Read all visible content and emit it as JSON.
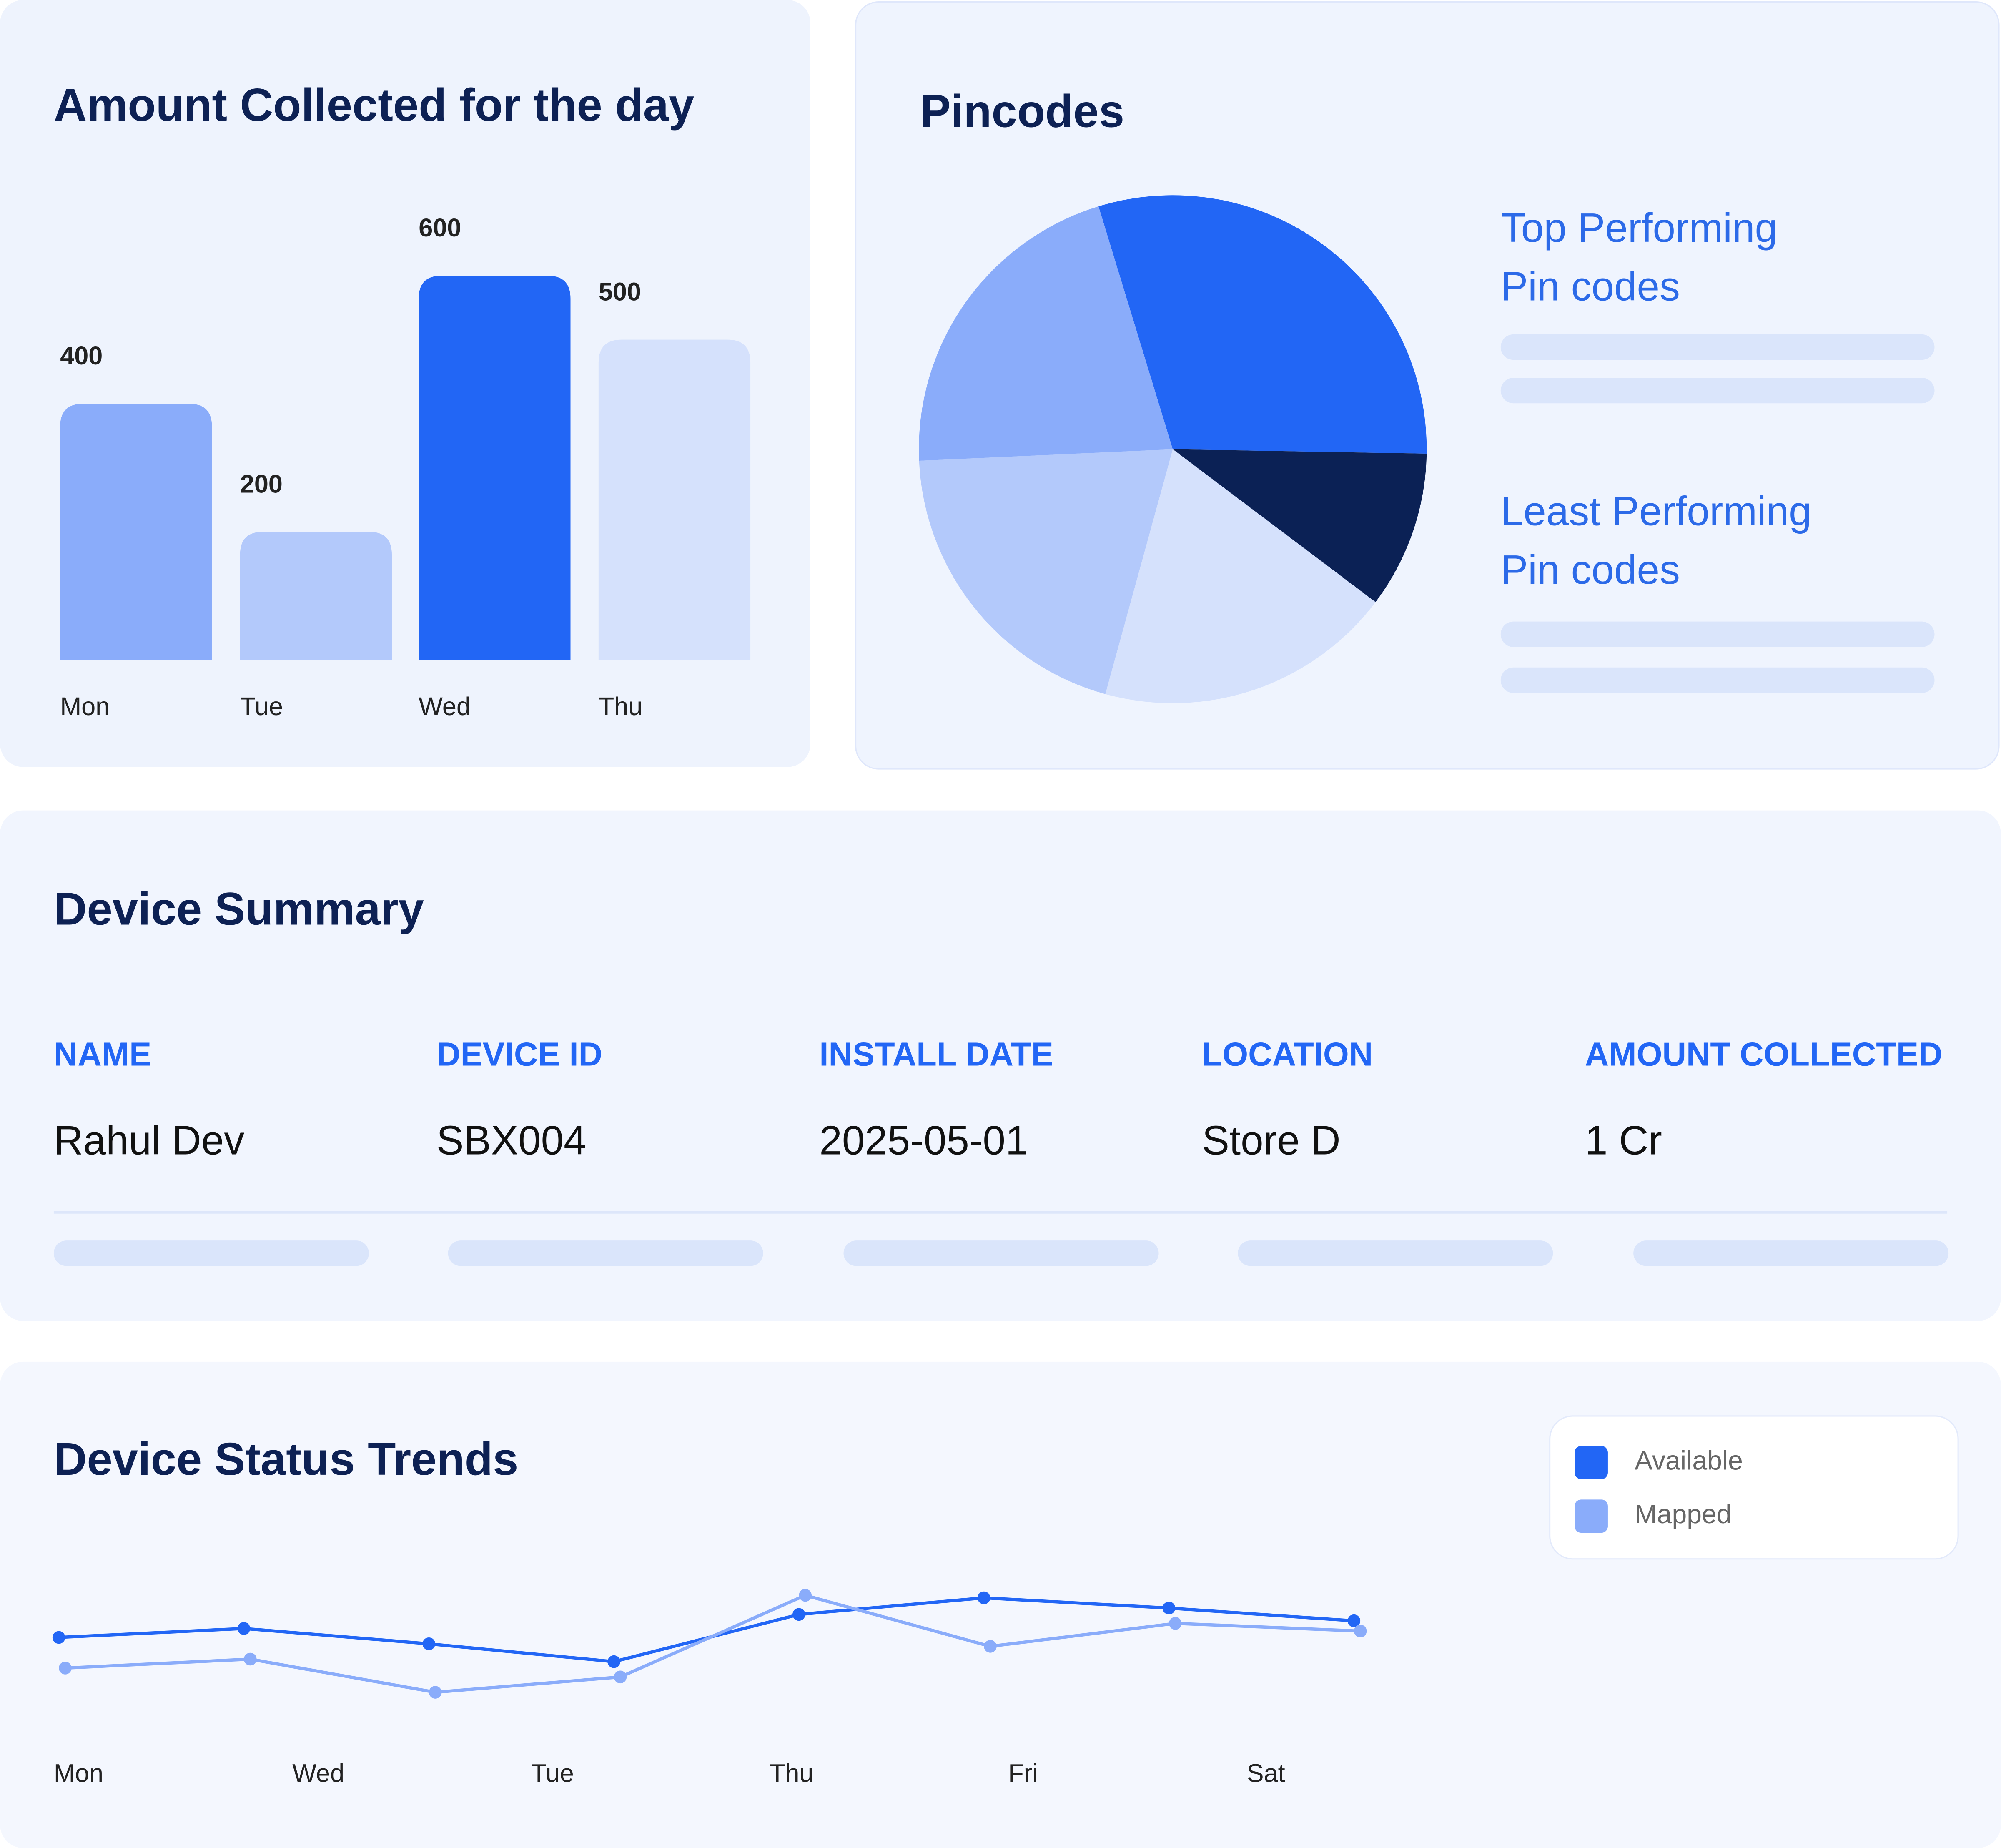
{
  "chart_data": [
    {
      "type": "bar",
      "title": "Amount Collected for the day",
      "categories": [
        "Mon",
        "Tue",
        "Wed",
        "Thu"
      ],
      "values": [
        400,
        200,
        600,
        500
      ],
      "colors": [
        "#8aacfa",
        "#b3c9fb",
        "#2266f5",
        "#d5e1fc"
      ]
    },
    {
      "type": "pie",
      "title": "Pincodes",
      "values": [
        30,
        10,
        19,
        20,
        21
      ],
      "colors": [
        "#2266f5",
        "#0b2155",
        "#d5e1fc",
        "#b3c9fb",
        "#8aacfa"
      ],
      "legend": [
        {
          "lines": [
            "Top Performing",
            "Pin codes"
          ]
        },
        {
          "lines": [
            "Least Performing",
            "Pin codes"
          ]
        }
      ]
    },
    {
      "type": "line",
      "title": "Device Status Trends",
      "xtick_labels": [
        "Mon",
        "Wed",
        "Tue",
        "Thu",
        "Fri",
        "Sat"
      ],
      "series": [
        {
          "name": "Available",
          "color": "#2266f5",
          "values": [
            117,
            124,
            112,
            98,
            135,
            148,
            140,
            130
          ]
        },
        {
          "name": "Mapped",
          "color": "#8aacfa",
          "values": [
            93,
            100,
            74,
            86,
            150,
            110,
            128,
            122
          ]
        }
      ]
    }
  ],
  "table": {
    "title": "Device Summary",
    "headers": [
      "NAME",
      "DEVICE ID",
      "INSTALL DATE",
      "LOCATION",
      "AMOUNT COLLECTED"
    ],
    "rows": [
      [
        "Rahul Dev",
        "SBX004",
        "2025-05-01",
        "Store D",
        "1 Cr"
      ]
    ]
  }
}
